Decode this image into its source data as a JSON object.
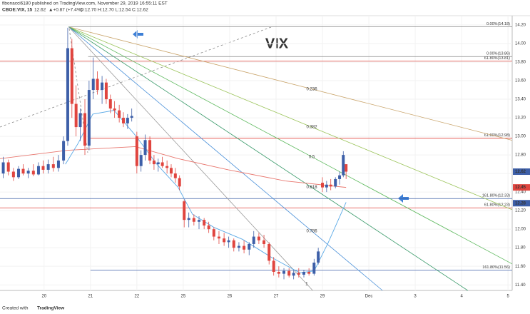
{
  "header": {
    "author_line": "fibonacci6180 published on TradingView.com, November 29, 2019 16:55:11 EST",
    "symbol": "CBOE:VIX, 15",
    "last": "12.62",
    "change": "▲+0.87 (+7.4%)",
    "ohlc": "O:12.70 H:12.70 L:12.54 C:12.62"
  },
  "footer": {
    "created": "Created with",
    "brand": "TradingView"
  },
  "chart_data": {
    "type": "candlestick",
    "title": "VIX",
    "up_color": "#3d5fa8",
    "down_color": "#e0453f",
    "x": [
      0.12,
      0.23,
      0.34,
      0.45,
      0.55,
      0.66,
      0.77,
      0.88,
      0.98,
      1.09,
      1.2,
      1.31,
      1.42,
      1.51,
      1.6,
      1.69,
      1.78,
      1.88,
      1.97,
      2.06,
      2.15,
      2.25,
      2.34,
      2.43,
      2.52,
      2.62,
      2.71,
      2.8,
      2.89,
      3.0,
      3.09,
      3.18,
      3.28,
      3.37,
      3.46,
      3.55,
      3.65,
      3.74,
      3.83,
      3.92,
      4.02,
      4.12,
      4.23,
      4.34,
      4.45,
      4.55,
      4.66,
      4.77,
      4.88,
      4.98,
      5.09,
      5.2,
      5.31,
      5.42,
      5.52,
      5.63,
      5.74,
      5.85,
      5.95,
      6.06,
      6.17,
      6.28,
      6.38,
      6.49,
      6.6,
      6.71,
      6.82,
      6.91,
      7.0,
      7.09,
      7.18,
      7.28,
      7.37,
      7.45,
      7.51
    ],
    "open": [
      12.6,
      12.72,
      12.62,
      12.56,
      12.65,
      12.6,
      12.63,
      12.59,
      12.68,
      12.64,
      12.7,
      12.66,
      12.74,
      12.95,
      13.95,
      13.35,
      13.1,
      13.25,
      12.9,
      13.5,
      13.62,
      13.5,
      13.58,
      13.4,
      13.3,
      13.28,
      13.2,
      13.14,
      13.2,
      13.0,
      12.68,
      12.8,
      12.96,
      12.74,
      12.7,
      12.72,
      12.68,
      12.66,
      12.6,
      12.55,
      12.3,
      12.1,
      12.12,
      12.08,
      12.1,
      12.04,
      12.0,
      11.92,
      11.9,
      11.86,
      11.88,
      11.8,
      11.82,
      11.78,
      11.84,
      11.92,
      11.88,
      11.84,
      11.66,
      11.54,
      11.52,
      11.55,
      11.5,
      11.53,
      11.51,
      11.54,
      11.52,
      11.64,
      12.5,
      12.45,
      12.48,
      12.46,
      12.54,
      12.58,
      12.7
    ],
    "high": [
      12.78,
      12.75,
      12.66,
      12.68,
      12.7,
      12.66,
      12.7,
      12.72,
      12.74,
      12.75,
      12.78,
      12.8,
      13.0,
      14.17,
      14.05,
      13.55,
      13.3,
      13.4,
      13.6,
      13.85,
      13.7,
      13.65,
      13.62,
      13.45,
      13.38,
      13.34,
      13.26,
      13.24,
      13.3,
      13.05,
      12.85,
      13.02,
      13.0,
      12.8,
      12.76,
      12.78,
      12.74,
      12.7,
      12.66,
      12.58,
      12.32,
      12.18,
      12.16,
      12.14,
      12.12,
      12.08,
      12.02,
      11.98,
      11.96,
      11.92,
      11.9,
      11.86,
      11.88,
      11.86,
      11.98,
      11.96,
      11.94,
      11.86,
      11.7,
      11.6,
      11.58,
      11.58,
      11.56,
      11.58,
      11.56,
      11.58,
      11.68,
      11.8,
      12.56,
      12.52,
      12.54,
      12.56,
      12.62,
      12.84,
      12.7
    ],
    "low": [
      12.55,
      12.58,
      12.52,
      12.54,
      12.58,
      12.55,
      12.57,
      12.58,
      12.6,
      12.6,
      12.62,
      12.62,
      12.7,
      12.9,
      13.2,
      13.0,
      12.95,
      12.8,
      12.85,
      13.4,
      13.45,
      13.35,
      13.35,
      13.25,
      13.2,
      13.15,
      13.1,
      13.08,
      13.16,
      12.6,
      12.62,
      12.74,
      12.7,
      12.64,
      12.62,
      12.66,
      12.6,
      12.56,
      12.5,
      12.42,
      12.02,
      12.02,
      12.04,
      12.0,
      12.0,
      11.96,
      11.88,
      11.84,
      11.82,
      11.8,
      11.76,
      11.76,
      11.74,
      11.72,
      11.8,
      11.84,
      11.8,
      11.62,
      11.5,
      11.48,
      11.46,
      11.48,
      11.46,
      11.48,
      11.48,
      11.5,
      11.5,
      11.62,
      12.4,
      12.4,
      12.42,
      12.44,
      12.48,
      12.56,
      12.54
    ],
    "close": [
      12.72,
      12.62,
      12.56,
      12.65,
      12.6,
      12.63,
      12.59,
      12.68,
      12.64,
      12.7,
      12.66,
      12.74,
      12.95,
      13.95,
      13.35,
      13.1,
      13.25,
      12.9,
      13.5,
      13.62,
      13.5,
      13.58,
      13.4,
      13.3,
      13.28,
      13.2,
      13.14,
      13.2,
      13.22,
      12.68,
      12.8,
      12.96,
      12.74,
      12.7,
      12.72,
      12.68,
      12.66,
      12.6,
      12.55,
      12.46,
      12.1,
      12.12,
      12.08,
      12.1,
      12.04,
      12.0,
      11.92,
      11.9,
      11.86,
      11.88,
      11.8,
      11.82,
      11.78,
      11.84,
      11.92,
      11.88,
      11.84,
      11.66,
      11.54,
      11.52,
      11.55,
      11.5,
      11.53,
      11.51,
      11.54,
      11.52,
      11.64,
      11.76,
      12.45,
      12.48,
      12.46,
      12.54,
      12.58,
      12.8,
      12.62
    ],
    "moving_averages": [
      {
        "color": "#e8776f",
        "x": [
          0.05,
          1.51,
          2.97,
          3.89,
          4.97,
          6.2,
          7.51
        ],
        "values": [
          12.76,
          12.85,
          12.89,
          12.76,
          12.64,
          12.52,
          12.45
        ]
      },
      {
        "color": "#5aa9e6",
        "x": [
          1.46,
          1.74,
          2.05,
          2.51,
          2.97,
          3.43,
          3.89,
          4.2,
          4.66,
          5.28,
          5.89,
          6.51,
          6.82,
          7.12,
          7.51
        ],
        "values": [
          12.7,
          12.93,
          13.24,
          13.28,
          13.01,
          12.7,
          12.45,
          12.16,
          12.02,
          11.89,
          11.7,
          11.53,
          11.55,
          11.85,
          12.29
        ]
      }
    ],
    "fan": {
      "x": 1.53,
      "y": 14.18,
      "lines": [
        {
          "label": "0.236",
          "color": "#c9a46a",
          "x": 6.77,
          "y": 13.51
        },
        {
          "label": "0.382",
          "color": "#9bc45a",
          "x": 6.77,
          "y": 13.1
        },
        {
          "label": "0.5",
          "color": "#5cb85c",
          "x": 6.77,
          "y": 12.78
        },
        {
          "label": "0.618",
          "color": "#3a9a6a",
          "x": 6.77,
          "y": 12.45
        },
        {
          "label": "0.786",
          "color": "#4a90d9",
          "x": 6.77,
          "y": 11.98
        },
        {
          "label": "1",
          "color": "#999999",
          "x": 6.66,
          "y": 11.41
        }
      ]
    },
    "levels": [
      {
        "price": 14.18,
        "label": "0.00%(14.18)",
        "color": "#888888",
        "from": 1.53
      },
      {
        "price": 13.86,
        "label": "0.00%(13.86)",
        "color": "#888888",
        "from": 1.95
      },
      {
        "price": 13.81,
        "label": "61.80%(13.81)",
        "color": "#e0453f",
        "from": 0.05
      },
      {
        "price": 12.98,
        "label": "61.80%(12.98)",
        "color": "#e0453f",
        "from": 1.95
      },
      {
        "price": 12.33,
        "label": "161.80%(12.33)",
        "color": "#3d5fa8",
        "from": 0.05
      },
      {
        "price": 12.23,
        "label": "61.80%(12.23)",
        "color": "#e0453f",
        "from": 0.05
      },
      {
        "price": 11.56,
        "label": "161.80%(11.56)",
        "color": "#3d5fa8",
        "from": 2.0
      }
    ],
    "price_tags": [
      {
        "value": 12.62,
        "color": "#3d5fa8"
      },
      {
        "value": 12.45,
        "color": "#e0453f"
      },
      {
        "value": 12.28,
        "color": "#3d5fa8"
      }
    ],
    "xlim": [
      0.05,
      11.09
    ],
    "xticks": [
      {
        "value": 1,
        "label": "20"
      },
      {
        "value": 2,
        "label": "21"
      },
      {
        "value": 3,
        "label": "22"
      },
      {
        "value": 4,
        "label": "25"
      },
      {
        "value": 5,
        "label": "26"
      },
      {
        "value": 6,
        "label": "27"
      },
      {
        "value": 7,
        "label": "29"
      },
      {
        "value": 8,
        "label": "Dec"
      },
      {
        "value": 9,
        "label": "3"
      },
      {
        "value": 10,
        "label": "4"
      },
      {
        "value": 11,
        "label": "5"
      }
    ],
    "ylim": [
      11.34,
      14.3
    ],
    "yticks": [
      {
        "value": 11.4,
        "label": "11.40"
      },
      {
        "value": 11.6,
        "label": "11.60"
      },
      {
        "value": 11.8,
        "label": "11.80"
      },
      {
        "value": 12,
        "label": "12.00"
      },
      {
        "value": 12.2,
        "label": "12.20"
      },
      {
        "value": 12.4,
        "label": "12.40"
      },
      {
        "value": 12.6,
        "label": "12.60"
      },
      {
        "value": 12.8,
        "label": "12.80"
      },
      {
        "value": 13,
        "label": "13.00"
      },
      {
        "value": 13.2,
        "label": "13.20"
      },
      {
        "value": 13.4,
        "label": "13.40"
      },
      {
        "value": 13.6,
        "label": "13.60"
      },
      {
        "value": 13.8,
        "label": "13.80"
      },
      {
        "value": 14,
        "label": "14.00"
      },
      {
        "value": 14.2,
        "label": "14.20"
      }
    ],
    "grid": true
  }
}
